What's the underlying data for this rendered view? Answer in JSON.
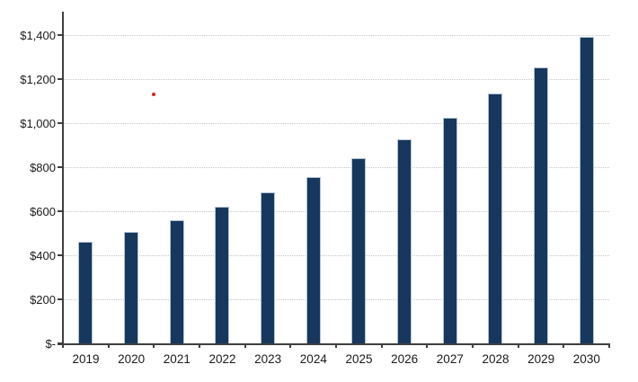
{
  "chart_data": {
    "type": "bar",
    "title": "",
    "xlabel": "",
    "ylabel": "",
    "categories": [
      "2019",
      "2020",
      "2021",
      "2022",
      "2023",
      "2024",
      "2025",
      "2026",
      "2027",
      "2028",
      "2029",
      "2030"
    ],
    "values": [
      460,
      505,
      560,
      620,
      685,
      755,
      840,
      925,
      1025,
      1135,
      1255,
      1390
    ],
    "ylim": [
      0,
      1400
    ],
    "y_tick_values": [
      0,
      200,
      400,
      600,
      800,
      1000,
      1200,
      1400
    ],
    "y_tick_labels": [
      "$-",
      "$200",
      "$400",
      "$600",
      "$800",
      "$1,000",
      "$1,200",
      "$1,400"
    ],
    "grid": "horizontal-dotted",
    "legend": "none",
    "colors": {
      "bar_fill": "#17375d",
      "bar_edge": "#b3c3d6",
      "axis": "#3f3f3f",
      "gridline": "#c6c6c6",
      "label_text": "#1a1a1a",
      "annotation_dot": "#e02020",
      "background": "#ffffff"
    },
    "annotation": {
      "type": "dot",
      "color": "#e02020",
      "between_years": [
        "2020",
        "2021"
      ],
      "y_value": 1130
    }
  }
}
